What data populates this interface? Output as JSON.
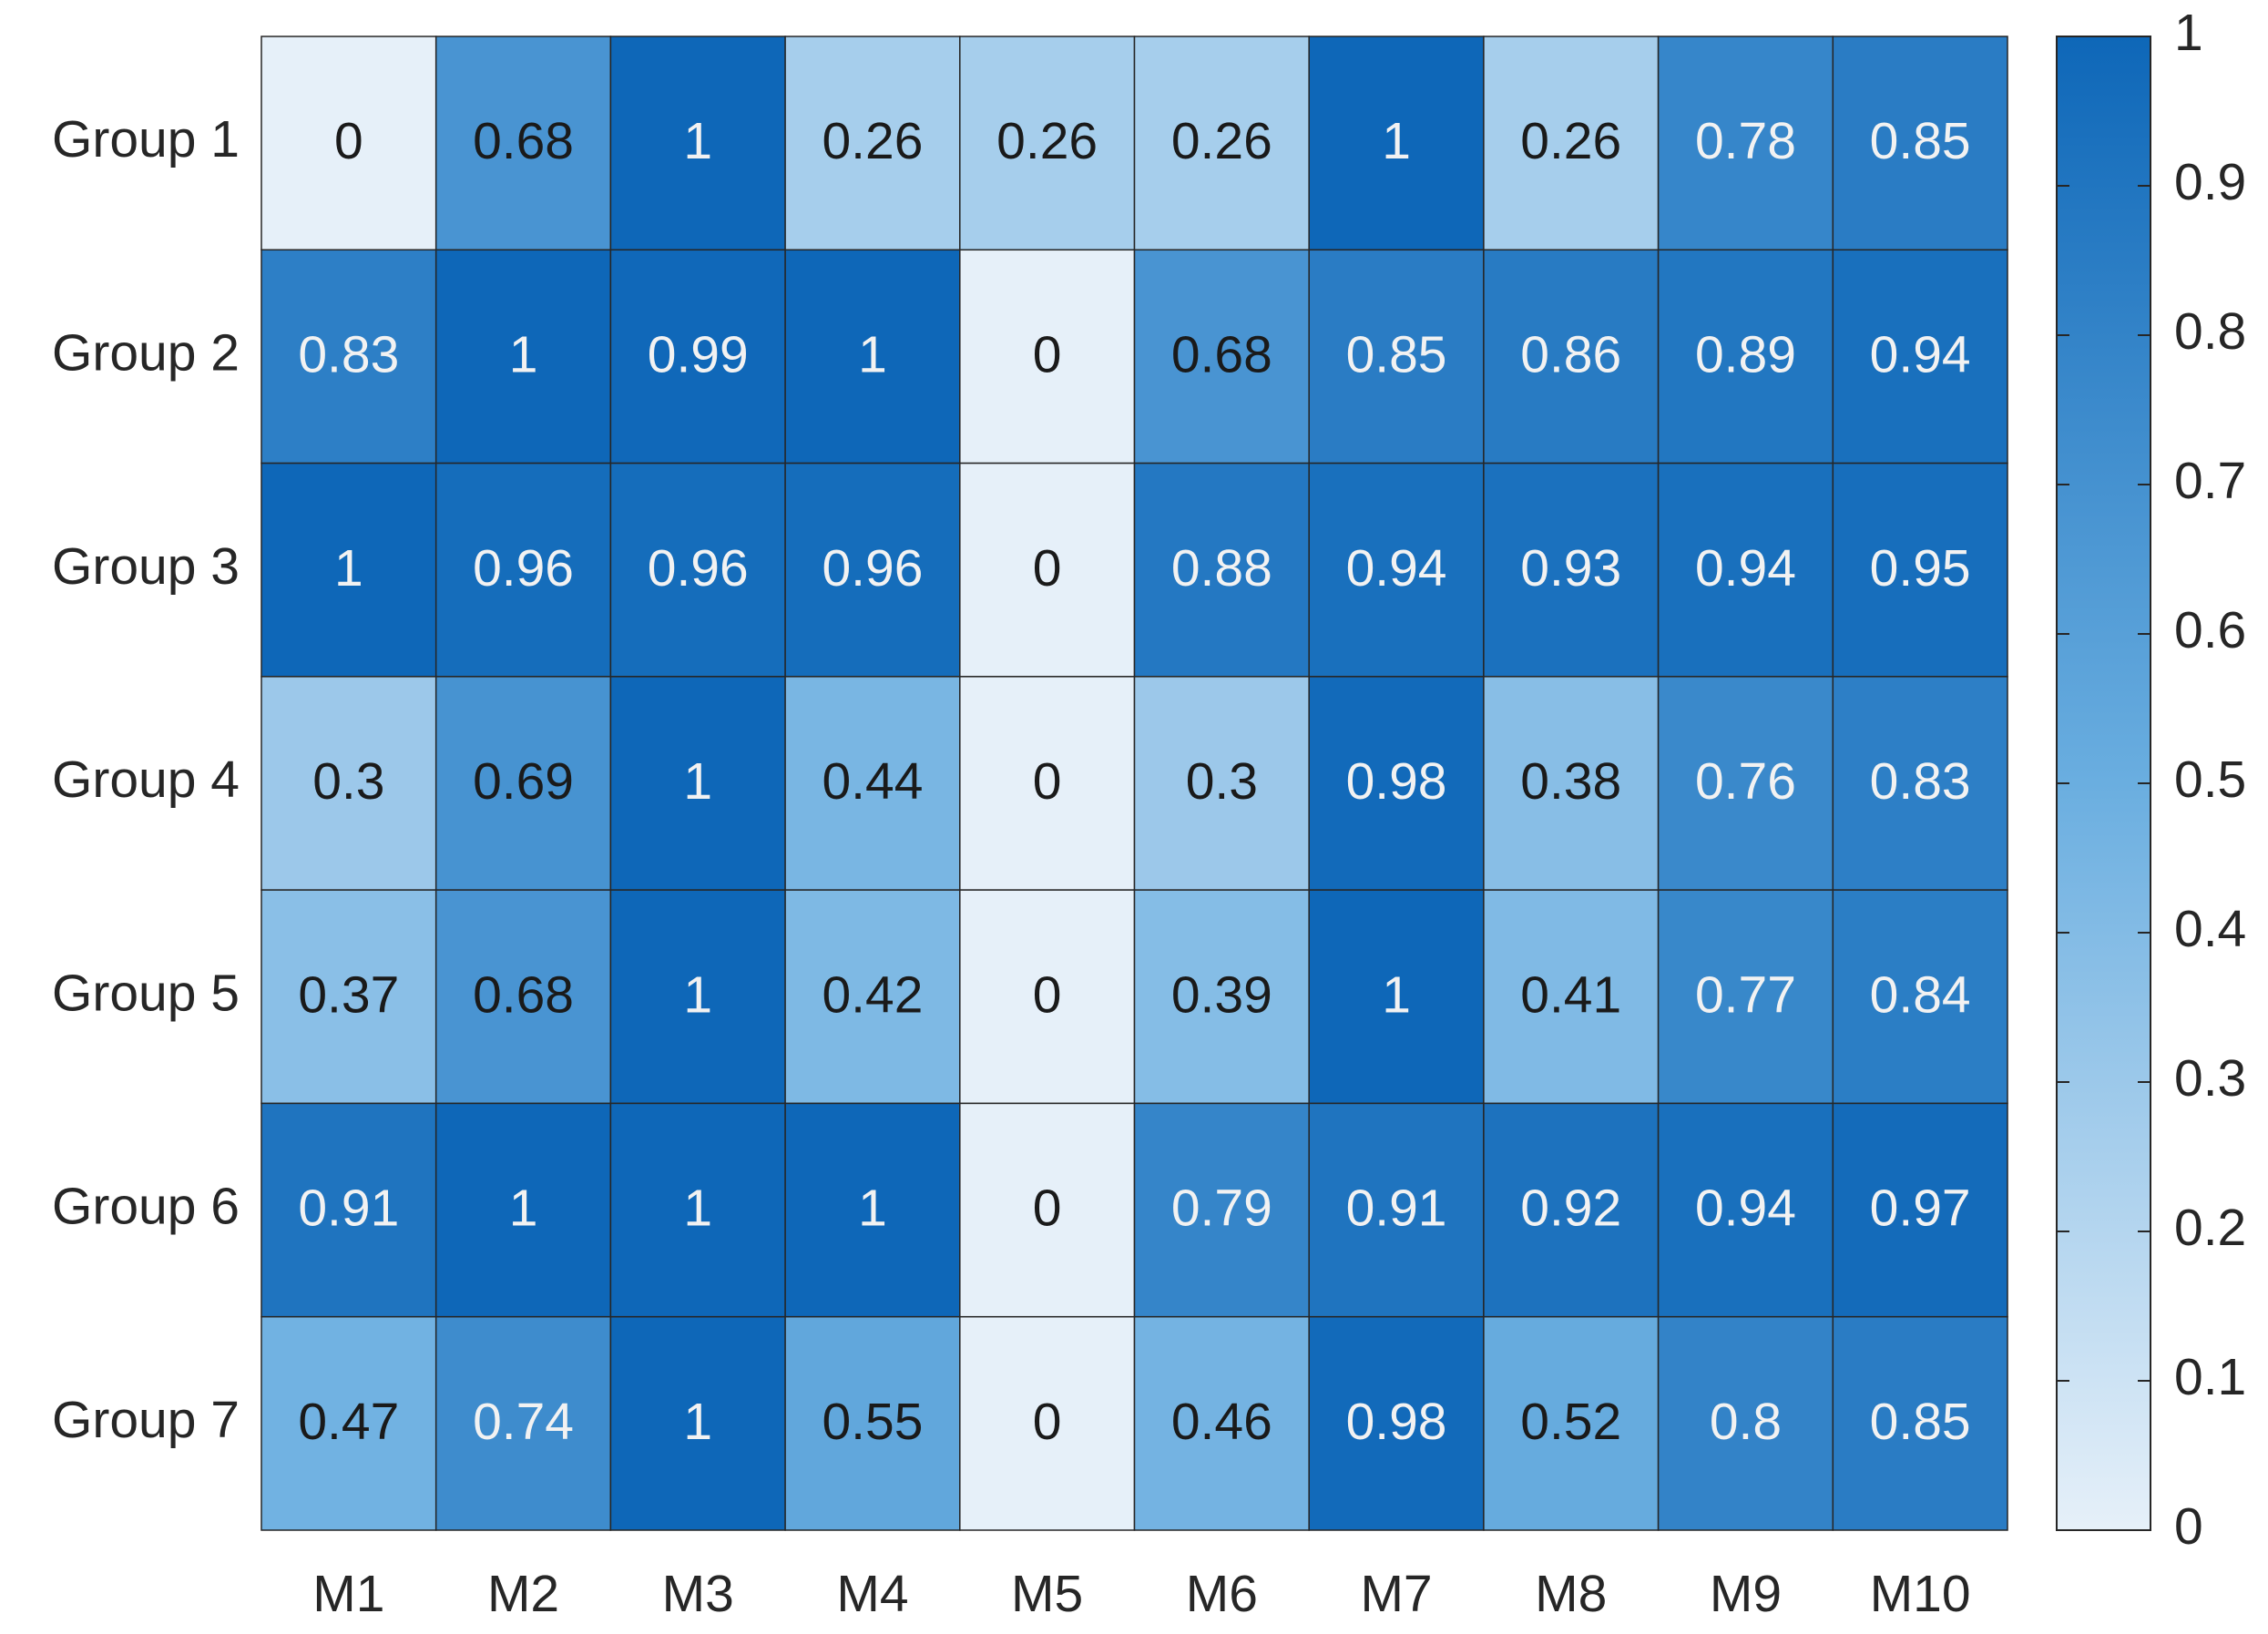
{
  "chart_data": {
    "type": "heatmap",
    "x_categories": [
      "M1",
      "M2",
      "M3",
      "M4",
      "M5",
      "M6",
      "M7",
      "M8",
      "M9",
      "M10"
    ],
    "y_categories": [
      "Group 1",
      "Group 2",
      "Group 3",
      "Group 4",
      "Group 5",
      "Group 6",
      "Group 7"
    ],
    "values": [
      [
        0,
        0.68,
        1,
        0.26,
        0.26,
        0.26,
        1,
        0.26,
        0.78,
        0.85
      ],
      [
        0.83,
        1,
        0.99,
        1,
        0,
        0.68,
        0.85,
        0.86,
        0.89,
        0.94
      ],
      [
        1,
        0.96,
        0.96,
        0.96,
        0,
        0.88,
        0.94,
        0.93,
        0.94,
        0.95
      ],
      [
        0.3,
        0.69,
        1,
        0.44,
        0,
        0.3,
        0.98,
        0.38,
        0.76,
        0.83
      ],
      [
        0.37,
        0.68,
        1,
        0.42,
        0,
        0.39,
        1,
        0.41,
        0.77,
        0.84
      ],
      [
        0.91,
        1,
        1,
        1,
        0,
        0.79,
        0.91,
        0.92,
        0.94,
        0.97
      ],
      [
        0.47,
        0.74,
        1,
        0.55,
        0,
        0.46,
        0.98,
        0.52,
        0.8,
        0.85
      ]
    ],
    "colormap": [
      "#e6f0f9",
      "#6aaee0",
      "#0e67b8"
    ],
    "clim": [
      0,
      1
    ],
    "cticks": [
      0,
      0.1,
      0.2,
      0.3,
      0.4,
      0.5,
      0.6,
      0.7,
      0.8,
      0.9,
      1
    ]
  }
}
